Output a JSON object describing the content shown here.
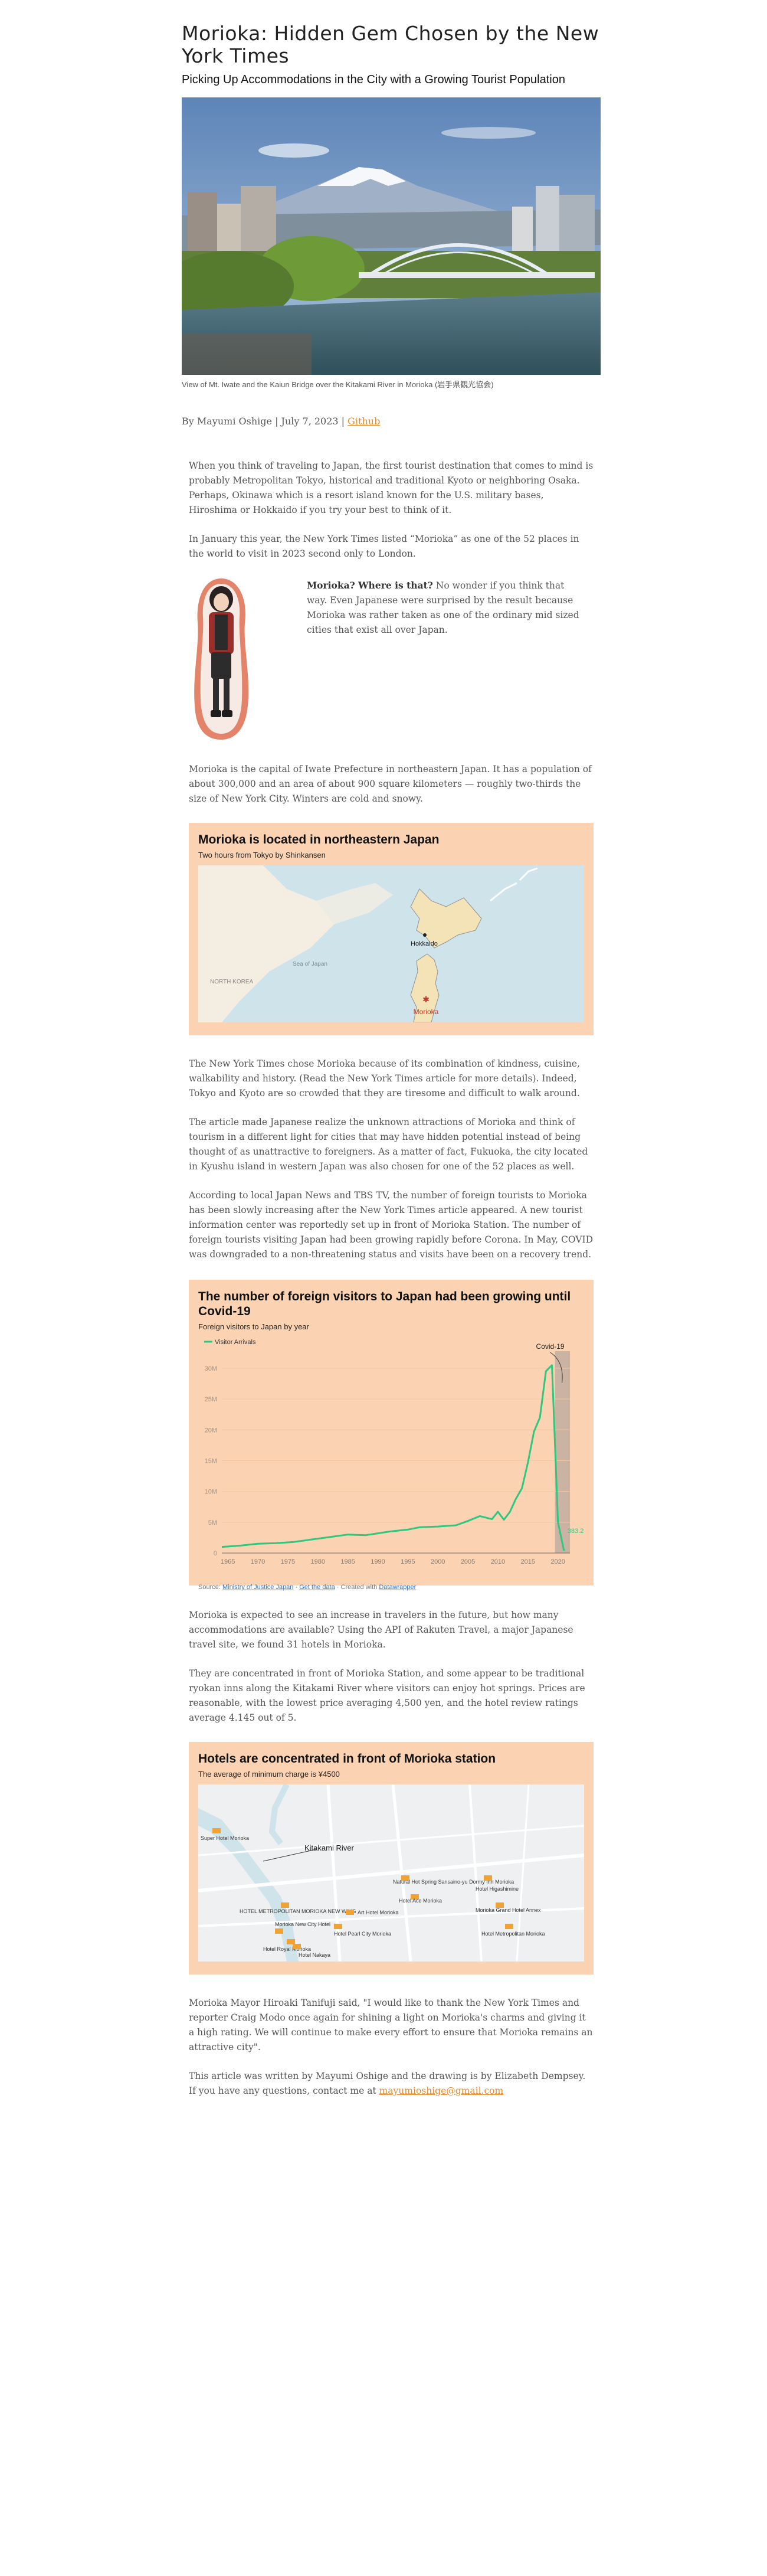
{
  "article": {
    "title": "Morioka: Hidden Gem Chosen by the New York Times",
    "subtitle": "Picking Up Accommodations in the City with a Growing Tourist Population",
    "hero_caption": "View of Mt. Iwate and the Kaiun Bridge over the Kitakami River in Morioka (岩手県観光協会)",
    "byline": {
      "author": "By Mayumi Oshige",
      "separator1": " | ",
      "date": "July 7, 2023",
      "separator2": " | ",
      "github": "Github"
    },
    "paragraphs": {
      "p1": "When you think of traveling to Japan, the first tourist destination that comes to mind is probably Metropolitan Tokyo, historical and traditional Kyoto or neighboring Osaka. Perhaps, Okinawa which is a resort island known for the U.S. military bases, Hiroshima or Hokkaido if you try your best to think of it.",
      "p2": "In January this year, the New York Times listed “Morioka” as one of the 52 places in the world to visit in 2023 second only to London.",
      "aside_bold": "Morioka? Where is that?",
      "aside_rest": " No wonder if you think that way. Even Japanese were surprised by the result because Morioka was rather taken as one of the ordinary mid sized cities that exist all over Japan.",
      "p3": "Morioka is the capital of Iwate Prefecture in northeastern Japan. It has a population of about 300,000 and an area of about 900 square kilometers — roughly two-thirds the size of New York City. Winters are cold and snowy.",
      "p4": "The New York Times chose Morioka because of its combination of kindness, cuisine, walkability and history. (Read the New York Times article for more details). Indeed, Tokyo and Kyoto are so crowded that they are tiresome and difficult to walk around.",
      "p5": "The article made Japanese realize the unknown attractions of Morioka and think of tourism in a different light for cities that may have hidden potential instead of being thought of as unattractive to foreigners. As a matter of fact, Fukuoka, the city located in Kyushu island in western Japan was also chosen for one of the 52 places as well.",
      "p6": "According to local Japan News and TBS TV, the number of foreign tourists to Morioka has been slowly increasing after the New York Times article appeared. A new tourist information center was reportedly set up in front of Morioka Station. The number of foreign tourists visiting Japan had been growing rapidly before Corona. In May, COVID was downgraded to a non-threatening status and visits have been on a recovery trend.",
      "p7": "Morioka is expected to see an increase in travelers in the future, but how many accommodations are available? Using the API of Rakuten Travel, a major Japanese travel site, we found 31 hotels in Morioka.",
      "p8": "They are concentrated in front of Morioka Station, and some appear to be traditional ryokan inns along the Kitakami River where visitors can enjoy hot springs. Prices are reasonable, with the lowest price averaging 4,500 yen, and the hotel review ratings average 4.145 out of 5.",
      "p9": "Morioka Mayor Hiroaki Tanifuji said, \"I would like to thank the New York Times and reporter Craig Modo once again for shining a light on Morioka's charms and giving it a high rating. We will continue to make every effort to ensure that Morioka remains an attractive city\".",
      "p10_text": "This article was written by Mayumi Oshige and the drawing is by Elizabeth Dempsey. If you have any questions, contact me at ",
      "p10_email": "mayumioshige@gmail.com"
    }
  },
  "map_card": {
    "title": "Morioka is located in northeastern Japan",
    "subtitle": "Two hours from Tokyo by Shinkansen",
    "labels": {
      "hokkaido": "Hokkaido",
      "morioka": "Morioka",
      "north_korea": "NORTH KOREA",
      "sea": "Sea of Japan"
    },
    "colors": {
      "water": "#cfe3ea",
      "land": "#f4eee2",
      "japan": "#f3e3b6",
      "marker": "#c0392b"
    }
  },
  "chart_card": {
    "title": "The number of foreign visitors to Japan had been growing until Covid-19",
    "subtitle": "Foreign visitors to Japan by year",
    "annotation": "Covid-19",
    "end_label": "383.2K",
    "footnote": {
      "source_prefix": "Source: ",
      "source": "Ministry of Justice Japan",
      "separator": " · ",
      "get_data": "Get the data",
      "created_prefix": " · Created with ",
      "tool": "Datawrapper"
    }
  },
  "chart_data": {
    "type": "line",
    "title": "The number of foreign visitors to Japan had been growing until Covid-19",
    "subtitle": "Foreign visitors to Japan by year",
    "xlabel": "",
    "ylabel": "",
    "xlim": [
      1964,
      2022
    ],
    "ylim": [
      0,
      32000000
    ],
    "x_ticks": [
      1965,
      1970,
      1975,
      1980,
      1985,
      1990,
      1995,
      2000,
      2005,
      2010,
      2015,
      2020
    ],
    "y_ticks": [
      0,
      5000000,
      10000000,
      15000000,
      20000000,
      25000000,
      30000000
    ],
    "y_tick_labels": [
      "0",
      "5M",
      "10M",
      "15M",
      "20M",
      "25M",
      "30M"
    ],
    "highlight_range": [
      2019.5,
      2022
    ],
    "legend_position": "top-left",
    "color": "#2ec77f",
    "series": [
      {
        "name": "Visitor Arrivals",
        "x": [
          1964,
          1967,
          1970,
          1973,
          1976,
          1979,
          1982,
          1985,
          1988,
          1990,
          1992,
          1995,
          1997,
          2000,
          2003,
          2005,
          2007,
          2009,
          2010,
          2011,
          2012,
          2013,
          2014,
          2015,
          2016,
          2017,
          2018,
          2019,
          2020,
          2021
        ],
        "y": [
          1000000,
          1200000,
          1500000,
          1600000,
          1800000,
          2200000,
          2600000,
          3000000,
          2900000,
          3200000,
          3500000,
          3800000,
          4200000,
          4300000,
          4500000,
          5200000,
          6000000,
          5500000,
          6700000,
          5400000,
          6700000,
          8800000,
          10500000,
          14700000,
          19700000,
          22000000,
          29500000,
          30500000,
          5000000,
          383200
        ]
      }
    ]
  },
  "hotel_card": {
    "title": "Hotels are concentrated in front of Morioka station",
    "subtitle": "The average of minimum charge is ¥4500",
    "labels": {
      "river": "Kitakami River",
      "h1": "Super Hotel Morioka",
      "h2": "Natural Hot Spring Sansaino-yu Dormy Inn Morioka",
      "h3": "Hotel Ace Morioka",
      "h4": "Hotel Higashimine",
      "h5": "HOTEL METROPOLITAN MORIOKA NEW WING",
      "h6": "Art Hotel Morioka",
      "h7": "Morioka New City Hotel",
      "h8": "Hotel Pearl City Morioka",
      "h9": "Hotel Royal Morioka",
      "h10": "Morioka Grand Hotel Annex",
      "h11": "Hotel Metropolitan Morioka",
      "h12": "Hotel Nakaya"
    },
    "colors": {
      "land": "#eef0f1",
      "river": "#cfe3ea",
      "road": "#ffffff",
      "marker": "#f0a330"
    }
  }
}
